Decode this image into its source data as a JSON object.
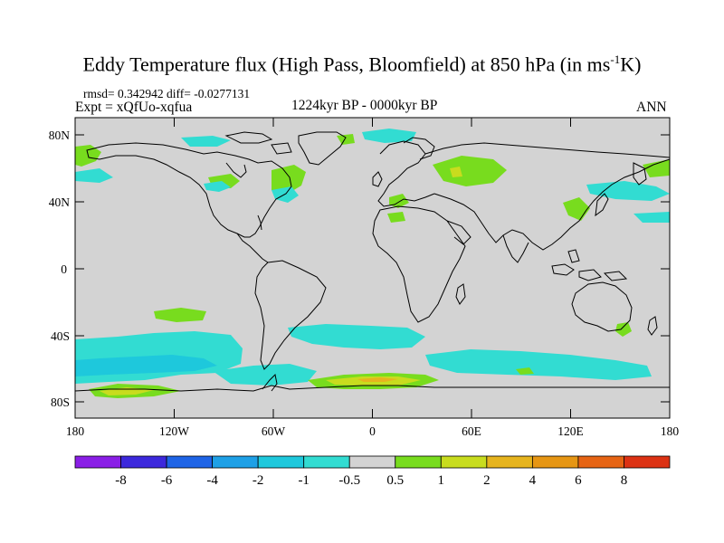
{
  "header": {
    "title_main": "Eddy Temperature flux (High Pass, Bloomfield) at 850 hPa (in ms",
    "title_sup": "-1",
    "title_end": "K)",
    "stats": "rmsd= 0.342942 diff= -0.0277131",
    "experiment": "Expt = xQfUo-xqfua",
    "period": "1224kyr BP - 0000kyr BP",
    "season": "ANN"
  },
  "map": {
    "lat_labels": [
      "80N",
      "40N",
      "0",
      "40S",
      "80S"
    ],
    "lon_labels": [
      "180",
      "120W",
      "60W",
      "0",
      "60E",
      "120E",
      "180"
    ],
    "background_color": "#d3d3d3"
  },
  "colorbar": {
    "colors": [
      "#8a1ee6",
      "#3c28dc",
      "#1e64e6",
      "#1ea0e6",
      "#1ec8dc",
      "#32dcd2",
      "#d3d3d3",
      "#78dc1e",
      "#c8dc1e",
      "#e6b41e",
      "#e69614",
      "#e66414",
      "#dc3214"
    ],
    "labels": [
      "-8",
      "-6",
      "-4",
      "-2",
      "-1",
      "-0.5",
      "0.5",
      "1",
      "2",
      "4",
      "6",
      "8"
    ]
  }
}
